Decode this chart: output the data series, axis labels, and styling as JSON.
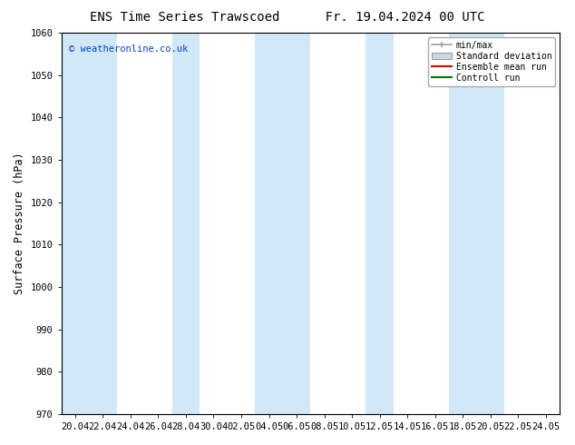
{
  "title": "ENS Time Series Trawscoed      Fr. 19.04.2024 00 UTC",
  "ylabel": "Surface Pressure (hPa)",
  "ylim": [
    970,
    1060
  ],
  "yticks": [
    970,
    980,
    990,
    1000,
    1010,
    1020,
    1030,
    1040,
    1050,
    1060
  ],
  "xlabels": [
    "20.04",
    "22.04",
    "24.04",
    "26.04",
    "28.04",
    "30.04",
    "02.05",
    "04.05",
    "06.05",
    "08.05",
    "10.05",
    "12.05",
    "14.05",
    "16.05",
    "18.05",
    "20.05",
    "22.05",
    "24.05"
  ],
  "background_color": "#ffffff",
  "plot_bg_color": "#ffffff",
  "band_color": "#d0e8f8",
  "legend_items": [
    "min/max",
    "Standard deviation",
    "Ensemble mean run",
    "Controll run"
  ],
  "legend_line_color": "#a0a0a0",
  "legend_std_color": "#c8d8e8",
  "legend_ens_color": "#dd0000",
  "legend_ctrl_color": "#007700",
  "watermark": "© weatheronline.co.uk",
  "watermark_color": "#0044cc",
  "title_fontsize": 10,
  "tick_fontsize": 7.5,
  "ylabel_fontsize": 8.5,
  "spine_color": "#000000",
  "tick_color": "#000000"
}
